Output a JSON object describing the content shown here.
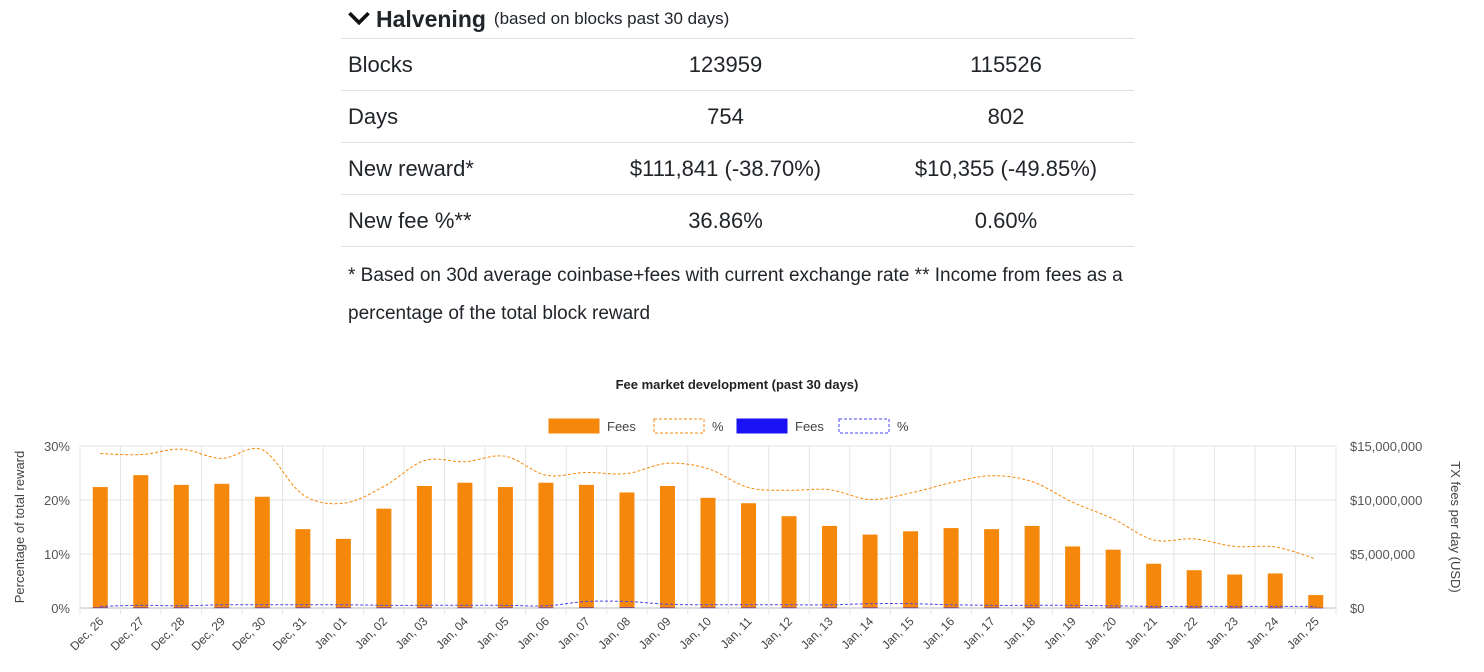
{
  "halvening": {
    "title": "Halvening",
    "subtitle": "(based on blocks past 30 days)",
    "rows": [
      {
        "label": "Blocks",
        "v1": "123959",
        "v2": "115526"
      },
      {
        "label": "Days",
        "v1": "754",
        "v2": "802"
      },
      {
        "label": "New reward*",
        "v1": "$111,841 (-38.70%)",
        "v2": "$10,355 (-49.85%)"
      },
      {
        "label": "New fee %**",
        "v1": "36.86%",
        "v2": "0.60%"
      }
    ],
    "footnote": "* Based on 30d average coinbase+fees with current exchange rate ** Income from fees as a percentage of the total block reward"
  },
  "chart_data": {
    "type": "bar",
    "title": "Fee market development (past 30 days)",
    "categories": [
      "Dec, 26",
      "Dec, 27",
      "Dec, 28",
      "Dec, 29",
      "Dec, 30",
      "Dec, 31",
      "Jan, 01",
      "Jan, 02",
      "Jan, 03",
      "Jan, 04",
      "Jan, 05",
      "Jan, 06",
      "Jan, 07",
      "Jan, 08",
      "Jan, 09",
      "Jan, 10",
      "Jan, 11",
      "Jan, 12",
      "Jan, 13",
      "Jan, 14",
      "Jan, 15",
      "Jan, 16",
      "Jan, 17",
      "Jan, 18",
      "Jan, 19",
      "Jan, 20",
      "Jan, 21",
      "Jan, 22",
      "Jan, 23",
      "Jan, 24",
      "Jan, 25"
    ],
    "ylabel_left": "Percentage of total reward",
    "ylabel_right": "TX fees per day (USD)",
    "ylim_left": [
      0,
      30
    ],
    "ylim_right": [
      0,
      15000000
    ],
    "yticks_left": [
      "0%",
      "10%",
      "20%",
      "30%"
    ],
    "yticks_right": [
      "$0",
      "$5,000,000",
      "$10,000,000",
      "$15,000,000"
    ],
    "series": [
      {
        "name": "Fees",
        "kind": "bar",
        "axis": "right",
        "color": "#f5880a",
        "values": [
          11200000,
          12300000,
          11400000,
          11500000,
          10300000,
          7300000,
          6400000,
          9200000,
          11300000,
          11600000,
          11200000,
          11600000,
          11400000,
          10700000,
          11300000,
          10200000,
          9700000,
          8500000,
          7600000,
          6800000,
          7100000,
          7400000,
          7300000,
          7600000,
          5700000,
          5400000,
          4100000,
          3500000,
          3100000,
          3200000,
          1200000
        ]
      },
      {
        "name": "%",
        "kind": "line-dashed",
        "axis": "left",
        "color": "#f5880a",
        "values": [
          28.6,
          28.4,
          29.4,
          27.7,
          29.3,
          21.0,
          19.4,
          22.5,
          27.3,
          27.1,
          28.1,
          24.6,
          25.1,
          24.9,
          26.8,
          25.8,
          22.3,
          21.8,
          21.9,
          20.1,
          21.3,
          23.2,
          24.5,
          23.4,
          19.6,
          16.5,
          12.6,
          12.8,
          11.4,
          11.3,
          9.1
        ]
      },
      {
        "name": "Fees",
        "kind": "bar",
        "axis": "right",
        "color": "#1a12f2",
        "values": [
          40000,
          35000,
          35000,
          35000,
          35000,
          35000,
          35000,
          35000,
          35000,
          35000,
          35000,
          35000,
          40000,
          45000,
          35000,
          35000,
          35000,
          35000,
          35000,
          35000,
          35000,
          35000,
          35000,
          35000,
          30000,
          30000,
          25000,
          25000,
          25000,
          25000,
          20000
        ]
      },
      {
        "name": "%",
        "kind": "line-dashed",
        "axis": "left",
        "color": "#4a44f0",
        "values": [
          0.3,
          0.5,
          0.4,
          0.6,
          0.6,
          0.6,
          0.6,
          0.5,
          0.5,
          0.5,
          0.5,
          0.4,
          1.2,
          1.2,
          0.7,
          0.6,
          0.6,
          0.6,
          0.6,
          0.8,
          0.8,
          0.6,
          0.5,
          0.5,
          0.5,
          0.4,
          0.3,
          0.3,
          0.3,
          0.3,
          0.3
        ]
      }
    ]
  }
}
